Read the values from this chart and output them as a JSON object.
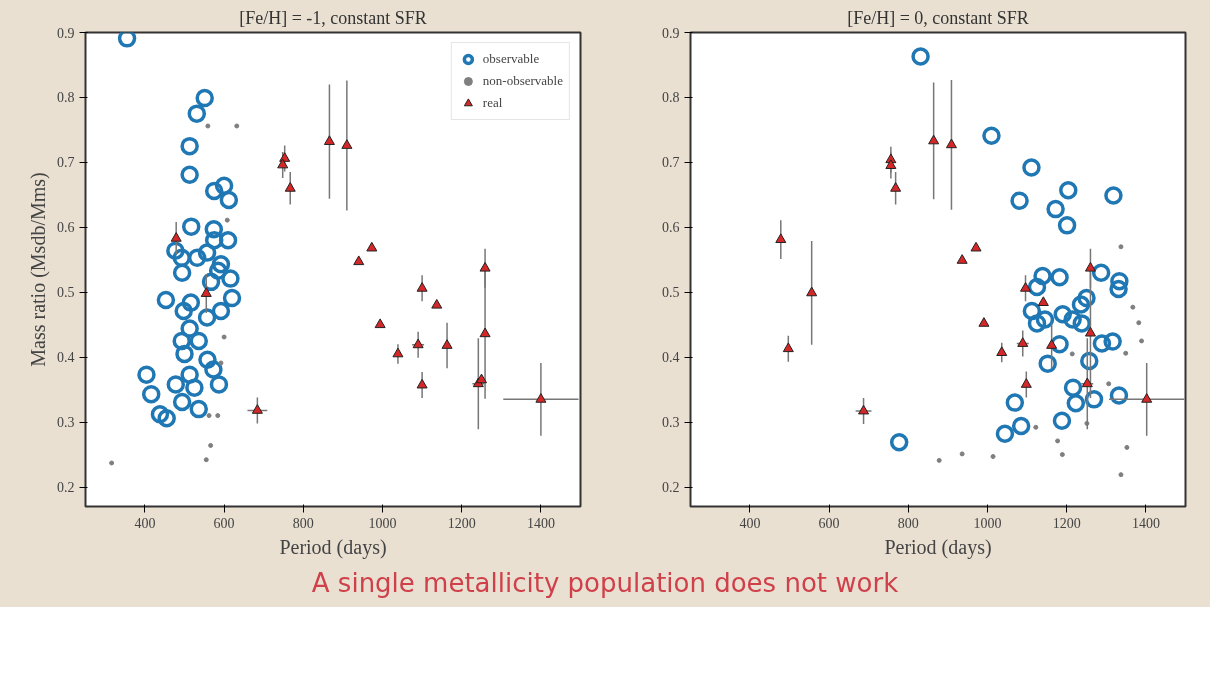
{
  "chart_data": [
    {
      "type": "scatter",
      "title": "[Fe/H] = -1, constant SFR",
      "xlabel": "Period (days)",
      "ylabel": "Mass ratio (Msdb/Mms)",
      "xlim": [
        250,
        1500
      ],
      "xticks": [
        400,
        600,
        800,
        1000,
        1200,
        1400
      ],
      "ylim": [
        0.17,
        0.9
      ],
      "yticks": [
        0.2,
        0.3,
        0.4,
        0.5,
        0.6,
        0.7,
        0.8,
        0.9
      ],
      "grid": false,
      "legend": "top right",
      "annotations": [
        "A single metallicity population does not work"
      ],
      "series": [
        {
          "name": "observable",
          "color": "#1f77b4",
          "marker": "circle",
          "x": [
            355,
            551,
            531,
            513,
            513,
            575,
            600,
            612,
            517,
            574,
            575,
            610,
            477,
            493,
            532,
            557,
            494,
            592,
            585,
            616,
            567,
            453,
            620,
            498,
            516,
            592,
            557,
            513,
            493,
            536,
            500,
            558,
            573,
            404,
            478,
            513,
            525,
            587,
            416,
            494,
            438,
            455,
            536
          ],
          "values": [
            0.891,
            0.799,
            0.775,
            0.725,
            0.681,
            0.656,
            0.664,
            0.642,
            0.601,
            0.597,
            0.58,
            0.58,
            0.564,
            0.553,
            0.553,
            0.561,
            0.53,
            0.543,
            0.533,
            0.521,
            0.516,
            0.488,
            0.491,
            0.471,
            0.484,
            0.471,
            0.461,
            0.444,
            0.425,
            0.425,
            0.405,
            0.396,
            0.381,
            0.373,
            0.358,
            0.373,
            0.353,
            0.358,
            0.343,
            0.331,
            0.312,
            0.306,
            0.32
          ]
        },
        {
          "name": "non-observable",
          "color": "#7f7f7f",
          "marker": "circle",
          "x": [
            559,
            632,
            608,
            600,
            592,
            562,
            584,
            566,
            555,
            316
          ],
          "values": [
            0.756,
            0.756,
            0.611,
            0.431,
            0.391,
            0.31,
            0.31,
            0.264,
            0.242,
            0.237
          ]
        },
        {
          "name": "real",
          "color": "#d62728",
          "marker": "triangle",
          "x": [
            479,
            555,
            684,
            753,
            748,
            767,
            866,
            910,
            940,
            973,
            994,
            1039,
            1090,
            1100,
            1100,
            1137,
            1163,
            1259,
            1259,
            1242,
            1250,
            1400
          ],
          "values": [
            0.583,
            0.498,
            0.318,
            0.706,
            0.696,
            0.66,
            0.732,
            0.726,
            0.547,
            0.568,
            0.45,
            0.405,
            0.419,
            0.506,
            0.357,
            0.48,
            0.418,
            0.537,
            0.436,
            0.359,
            0.365,
            0.335
          ],
          "errors": [
            0.025,
            0.03,
            0.02,
            0.02,
            0.02,
            0.025,
            0.088,
            0.1,
            null,
            null,
            null,
            0.015,
            0.02,
            0.02,
            0.02,
            null,
            0.035,
            0.03,
            0.1,
            0.07,
            null,
            0.056
          ],
          "xerrors": [
            null,
            null,
            25,
            null,
            null,
            null,
            null,
            null,
            null,
            null,
            null,
            null,
            15,
            null,
            null,
            null,
            null,
            null,
            null,
            15,
            null,
            95
          ]
        }
      ]
    },
    {
      "type": "scatter",
      "title": "[Fe/H] = 0, constant SFR",
      "xlabel": "Period (days)",
      "xlim": [
        250,
        1500
      ],
      "xticks": [
        400,
        600,
        800,
        1000,
        1200,
        1400
      ],
      "ylim": [
        0.17,
        0.9
      ],
      "yticks": [
        0.2,
        0.3,
        0.4,
        0.5,
        0.6,
        0.7,
        0.8,
        0.9
      ],
      "grid": false,
      "series": [
        {
          "color": "#1f77b4",
          "marker": "circle",
          "x": [
            831,
            777,
            1010,
            1111,
            1081,
            1204,
            1172,
            1201,
            1318,
            1139,
            1182,
            1125,
            1287,
            1333,
            1331,
            1250,
            1236,
            1112,
            1190,
            1215,
            1238,
            1145,
            1125,
            1182,
            1289,
            1316,
            1152,
            1257,
            1216,
            1069,
            1223,
            1269,
            1332,
            1188,
            1085,
            1044
          ],
          "values": [
            0.863,
            0.269,
            0.741,
            0.692,
            0.641,
            0.657,
            0.628,
            0.603,
            0.649,
            0.525,
            0.523,
            0.508,
            0.53,
            0.517,
            0.505,
            0.491,
            0.481,
            0.471,
            0.466,
            0.458,
            0.452,
            0.458,
            0.452,
            0.42,
            0.421,
            0.424,
            0.39,
            0.394,
            0.353,
            0.33,
            0.329,
            0.335,
            0.341,
            0.302,
            0.294,
            0.282
          ]
        },
        {
          "color": "#7f7f7f",
          "marker": "circle",
          "x": [
            1337,
            1367,
            1382,
            1389,
            1349,
            1214,
            1306,
            1251,
            1122,
            1177,
            1189,
            1352,
            1337,
            1014,
            936,
            878
          ],
          "values": [
            0.57,
            0.477,
            0.453,
            0.425,
            0.406,
            0.405,
            0.359,
            0.298,
            0.292,
            0.271,
            0.25,
            0.261,
            0.219,
            0.247,
            0.251,
            0.241
          ]
        },
        {
          "color": "#d62728",
          "marker": "triangle",
          "x": [
            478,
            497,
            556,
            687,
            756,
            756,
            768,
            864,
            909,
            936,
            971,
            991,
            1036,
            1089,
            1096,
            1098,
            1141,
            1162,
            1260,
            1260,
            1252,
            1402
          ],
          "values": [
            0.581,
            0.413,
            0.499,
            0.317,
            0.704,
            0.695,
            0.66,
            0.733,
            0.727,
            0.549,
            0.568,
            0.452,
            0.407,
            0.421,
            0.506,
            0.358,
            0.484,
            0.418,
            0.537,
            0.437,
            0.359,
            0.335
          ],
          "errors": [
            0.03,
            0.02,
            0.08,
            0.02,
            0.02,
            0.02,
            0.025,
            0.09,
            0.1,
            null,
            null,
            null,
            0.015,
            0.02,
            0.02,
            0.02,
            null,
            0.035,
            0.03,
            0.1,
            0.07,
            0.056
          ],
          "xerrors": [
            null,
            null,
            null,
            20,
            null,
            null,
            null,
            null,
            null,
            null,
            null,
            null,
            null,
            15,
            null,
            null,
            null,
            null,
            null,
            null,
            15,
            95
          ]
        }
      ]
    }
  ]
}
